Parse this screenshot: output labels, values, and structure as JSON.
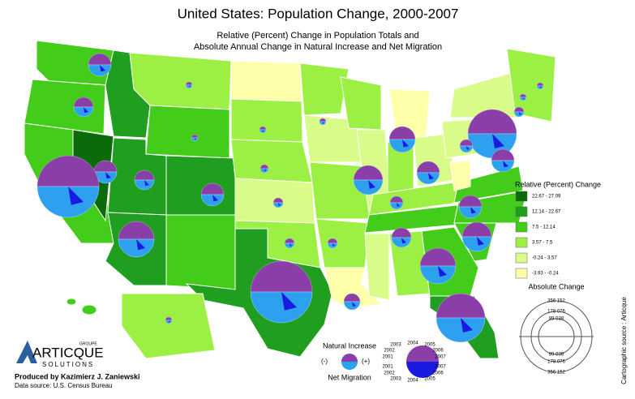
{
  "header": {
    "title": "United States: Population Change, 2000-2007",
    "subtitle": [
      "Relative (Percent) Change in Population Totals and",
      "Absolute Annual Change in Natural Increase and Net Migration"
    ]
  },
  "legend": {
    "title": "Relative (Percent) Change",
    "classes": [
      {
        "label": "22.67 - 27.09",
        "color": "#0b6b0b"
      },
      {
        "label": "12.14 - 22.67",
        "color": "#1f9e1f"
      },
      {
        "label": "7.5 - 12.14",
        "color": "#44cc1a"
      },
      {
        "label": "3.57 - 7.5",
        "color": "#9cf044"
      },
      {
        "label": "-0.24 - 3.57",
        "color": "#d9fb8a"
      },
      {
        "label": "-3.93 - -0.24",
        "color": "#ffffaa"
      }
    ]
  },
  "absolute_legend": {
    "title": "Absolute Change",
    "top_labels": [
      "356 152",
      "178 076",
      "89 038"
    ],
    "bottom_labels": [
      "89 038",
      "178 076",
      "356 152"
    ]
  },
  "key": {
    "top": "Natural Increase",
    "bottom": "Net Migration",
    "minus": "(-)",
    "plus": "(+)",
    "upper_years": [
      "2003",
      "2004",
      "2005",
      "2002",
      "2006",
      "2001",
      "2007"
    ],
    "lower_years": [
      "2001",
      "2007",
      "2002",
      "2006",
      "2003",
      "2004",
      "2005"
    ]
  },
  "credits": {
    "logo_top": "GROUPE",
    "logo": "ARTICQUE",
    "logo_sub": "SOLUTIONS",
    "producer": "Produced by Kazimierz J. Zaniewski",
    "source": "Data source: U.S. Census Bureau",
    "cartographic": "Cartographic source : Articque"
  }
}
